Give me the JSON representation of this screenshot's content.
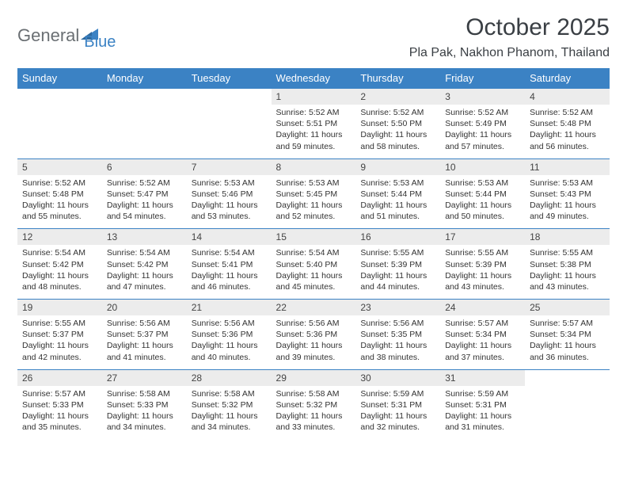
{
  "brand": {
    "part1": "General",
    "part2": "Blue"
  },
  "title": "October 2025",
  "location": "Pla Pak, Nakhon Phanom, Thailand",
  "colors": {
    "accent": "#3b82c4",
    "header_text": "#ffffff",
    "daynum_bg": "#ececec",
    "body_text": "#333333",
    "title_text": "#3a3f44",
    "logo_gray": "#6a6f73"
  },
  "weekdays": [
    "Sunday",
    "Monday",
    "Tuesday",
    "Wednesday",
    "Thursday",
    "Friday",
    "Saturday"
  ],
  "calendar": {
    "first_weekday_index": 3,
    "days_in_month": 31
  },
  "days": {
    "1": {
      "sunrise": "5:52 AM",
      "sunset": "5:51 PM",
      "daylight": "11 hours and 59 minutes."
    },
    "2": {
      "sunrise": "5:52 AM",
      "sunset": "5:50 PM",
      "daylight": "11 hours and 58 minutes."
    },
    "3": {
      "sunrise": "5:52 AM",
      "sunset": "5:49 PM",
      "daylight": "11 hours and 57 minutes."
    },
    "4": {
      "sunrise": "5:52 AM",
      "sunset": "5:48 PM",
      "daylight": "11 hours and 56 minutes."
    },
    "5": {
      "sunrise": "5:52 AM",
      "sunset": "5:48 PM",
      "daylight": "11 hours and 55 minutes."
    },
    "6": {
      "sunrise": "5:52 AM",
      "sunset": "5:47 PM",
      "daylight": "11 hours and 54 minutes."
    },
    "7": {
      "sunrise": "5:53 AM",
      "sunset": "5:46 PM",
      "daylight": "11 hours and 53 minutes."
    },
    "8": {
      "sunrise": "5:53 AM",
      "sunset": "5:45 PM",
      "daylight": "11 hours and 52 minutes."
    },
    "9": {
      "sunrise": "5:53 AM",
      "sunset": "5:44 PM",
      "daylight": "11 hours and 51 minutes."
    },
    "10": {
      "sunrise": "5:53 AM",
      "sunset": "5:44 PM",
      "daylight": "11 hours and 50 minutes."
    },
    "11": {
      "sunrise": "5:53 AM",
      "sunset": "5:43 PM",
      "daylight": "11 hours and 49 minutes."
    },
    "12": {
      "sunrise": "5:54 AM",
      "sunset": "5:42 PM",
      "daylight": "11 hours and 48 minutes."
    },
    "13": {
      "sunrise": "5:54 AM",
      "sunset": "5:42 PM",
      "daylight": "11 hours and 47 minutes."
    },
    "14": {
      "sunrise": "5:54 AM",
      "sunset": "5:41 PM",
      "daylight": "11 hours and 46 minutes."
    },
    "15": {
      "sunrise": "5:54 AM",
      "sunset": "5:40 PM",
      "daylight": "11 hours and 45 minutes."
    },
    "16": {
      "sunrise": "5:55 AM",
      "sunset": "5:39 PM",
      "daylight": "11 hours and 44 minutes."
    },
    "17": {
      "sunrise": "5:55 AM",
      "sunset": "5:39 PM",
      "daylight": "11 hours and 43 minutes."
    },
    "18": {
      "sunrise": "5:55 AM",
      "sunset": "5:38 PM",
      "daylight": "11 hours and 43 minutes."
    },
    "19": {
      "sunrise": "5:55 AM",
      "sunset": "5:37 PM",
      "daylight": "11 hours and 42 minutes."
    },
    "20": {
      "sunrise": "5:56 AM",
      "sunset": "5:37 PM",
      "daylight": "11 hours and 41 minutes."
    },
    "21": {
      "sunrise": "5:56 AM",
      "sunset": "5:36 PM",
      "daylight": "11 hours and 40 minutes."
    },
    "22": {
      "sunrise": "5:56 AM",
      "sunset": "5:36 PM",
      "daylight": "11 hours and 39 minutes."
    },
    "23": {
      "sunrise": "5:56 AM",
      "sunset": "5:35 PM",
      "daylight": "11 hours and 38 minutes."
    },
    "24": {
      "sunrise": "5:57 AM",
      "sunset": "5:34 PM",
      "daylight": "11 hours and 37 minutes."
    },
    "25": {
      "sunrise": "5:57 AM",
      "sunset": "5:34 PM",
      "daylight": "11 hours and 36 minutes."
    },
    "26": {
      "sunrise": "5:57 AM",
      "sunset": "5:33 PM",
      "daylight": "11 hours and 35 minutes."
    },
    "27": {
      "sunrise": "5:58 AM",
      "sunset": "5:33 PM",
      "daylight": "11 hours and 34 minutes."
    },
    "28": {
      "sunrise": "5:58 AM",
      "sunset": "5:32 PM",
      "daylight": "11 hours and 34 minutes."
    },
    "29": {
      "sunrise": "5:58 AM",
      "sunset": "5:32 PM",
      "daylight": "11 hours and 33 minutes."
    },
    "30": {
      "sunrise": "5:59 AM",
      "sunset": "5:31 PM",
      "daylight": "11 hours and 32 minutes."
    },
    "31": {
      "sunrise": "5:59 AM",
      "sunset": "5:31 PM",
      "daylight": "11 hours and 31 minutes."
    }
  },
  "labels": {
    "sunrise": "Sunrise: ",
    "sunset": "Sunset: ",
    "daylight": "Daylight: "
  }
}
